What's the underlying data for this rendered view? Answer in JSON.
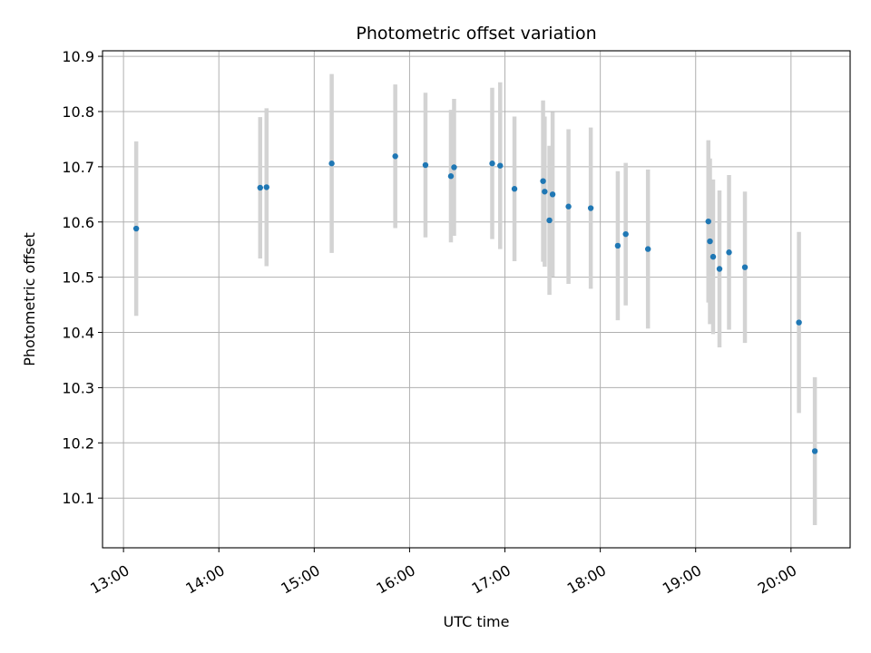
{
  "chart_data": {
    "type": "scatter",
    "title": "Photometric offset variation",
    "xlabel": "UTC time",
    "ylabel": "Photometric offset",
    "grid": true,
    "x_unit": "hours",
    "xlim": [
      12.78,
      20.62
    ],
    "ylim": [
      10.01,
      10.91
    ],
    "x_ticks": [
      13,
      14,
      15,
      16,
      17,
      18,
      19,
      20
    ],
    "x_tick_labels": [
      "13:00",
      "14:00",
      "15:00",
      "16:00",
      "17:00",
      "18:00",
      "19:00",
      "20:00"
    ],
    "y_ticks": [
      10.1,
      10.2,
      10.3,
      10.4,
      10.5,
      10.6,
      10.7,
      10.8,
      10.9
    ],
    "y_tick_labels": [
      "10.1",
      "10.2",
      "10.3",
      "10.4",
      "10.5",
      "10.6",
      "10.7",
      "10.8",
      "10.9"
    ],
    "colors": {
      "point": "#1f77b4",
      "errorbar": "#d3d3d3",
      "grid": "#b0b0b0"
    },
    "points": [
      {
        "x": "13:08",
        "y": 10.588,
        "err": 0.158
      },
      {
        "x": "14:26",
        "y": 10.662,
        "err": 0.128
      },
      {
        "x": "14:30",
        "y": 10.663,
        "err": 0.143
      },
      {
        "x": "15:11",
        "y": 10.706,
        "err": 0.162
      },
      {
        "x": "15:51",
        "y": 10.719,
        "err": 0.13
      },
      {
        "x": "16:10",
        "y": 10.703,
        "err": 0.131
      },
      {
        "x": "16:26",
        "y": 10.683,
        "err": 0.12
      },
      {
        "x": "16:28",
        "y": 10.699,
        "err": 0.124
      },
      {
        "x": "16:52",
        "y": 10.706,
        "err": 0.137
      },
      {
        "x": "16:57",
        "y": 10.702,
        "err": 0.151
      },
      {
        "x": "17:06",
        "y": 10.66,
        "err": 0.131
      },
      {
        "x": "17:24",
        "y": 10.674,
        "err": 0.146
      },
      {
        "x": "17:25",
        "y": 10.655,
        "err": 0.136
      },
      {
        "x": "17:28",
        "y": 10.603,
        "err": 0.135
      },
      {
        "x": "17:30",
        "y": 10.65,
        "err": 0.149
      },
      {
        "x": "17:40",
        "y": 10.628,
        "err": 0.14
      },
      {
        "x": "17:54",
        "y": 10.625,
        "err": 0.146
      },
      {
        "x": "18:11",
        "y": 10.557,
        "err": 0.135
      },
      {
        "x": "18:16",
        "y": 10.578,
        "err": 0.129
      },
      {
        "x": "18:30",
        "y": 10.551,
        "err": 0.144
      },
      {
        "x": "19:08",
        "y": 10.601,
        "err": 0.147
      },
      {
        "x": "19:09",
        "y": 10.565,
        "err": 0.15
      },
      {
        "x": "19:11",
        "y": 10.537,
        "err": 0.14
      },
      {
        "x": "19:15",
        "y": 10.515,
        "err": 0.142
      },
      {
        "x": "19:21",
        "y": 10.545,
        "err": 0.14
      },
      {
        "x": "19:31",
        "y": 10.518,
        "err": 0.137
      },
      {
        "x": "20:05",
        "y": 10.418,
        "err": 0.164
      },
      {
        "x": "20:15",
        "y": 10.185,
        "err": 0.134
      }
    ]
  }
}
